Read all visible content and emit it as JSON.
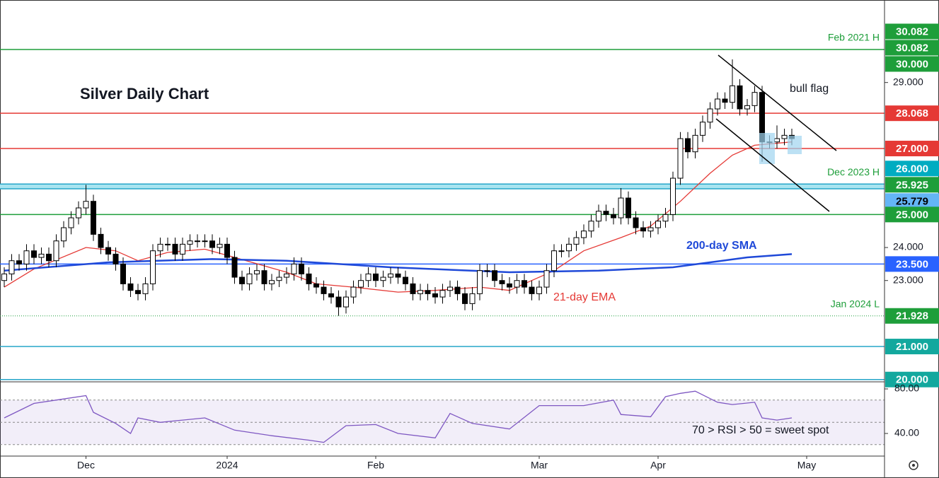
{
  "chart_data": {
    "type": "candlestick",
    "title": "Silver Daily Chart",
    "ylim": [
      19.93,
      31.5
    ],
    "yticks": [
      {
        "value": 29,
        "label": "29.000"
      },
      {
        "value": 24,
        "label": "24.000"
      },
      {
        "value": 23,
        "label": "23.000"
      }
    ],
    "up_color": "#ffffff",
    "down_color": "#000000",
    "open": [
      23.0,
      23.2,
      23.6,
      23.5,
      23.9,
      23.7,
      23.8,
      23.6,
      24.2,
      24.6,
      24.9,
      25.2,
      25.4,
      24.4,
      24.0,
      23.8,
      23.5,
      22.9,
      22.7,
      22.6,
      22.9,
      23.9,
      24.1,
      24.1,
      23.8,
      24.1,
      24.2,
      24.2,
      24.2,
      24.0,
      24.1,
      23.7,
      23.1,
      22.9,
      23.2,
      23.3,
      22.9,
      23.0,
      23.1,
      23.2,
      23.5,
      23.2,
      22.9,
      22.8,
      22.6,
      22.5,
      22.2,
      22.5,
      22.8,
      23.0,
      23.2,
      23.0,
      23.1,
      23.2,
      23.1,
      22.9,
      22.6,
      22.7,
      22.6,
      22.5,
      22.7,
      22.8,
      22.6,
      22.3,
      22.6,
      23.3,
      23.3,
      23.0,
      22.9,
      22.8,
      23.0,
      22.8,
      22.6,
      22.8,
      23.3,
      23.9,
      23.9,
      24.1,
      24.3,
      24.5,
      24.8,
      25.1,
      25.0,
      24.9,
      25.5,
      24.9,
      24.6,
      24.5,
      24.6,
      24.8,
      25.0,
      26.1,
      27.3,
      26.9,
      27.4,
      27.8,
      28.2,
      28.5,
      28.4,
      28.9,
      28.2,
      28.3,
      28.7,
      27.2,
      27.2,
      27.3,
      27.4
    ],
    "high": [
      23.4,
      23.8,
      23.8,
      24.1,
      24.1,
      24.0,
      24.0,
      24.4,
      24.8,
      25.1,
      25.4,
      25.9,
      25.6,
      24.6,
      24.2,
      24.0,
      23.7,
      23.1,
      22.9,
      23.1,
      24.1,
      24.3,
      24.3,
      24.3,
      24.3,
      24.4,
      24.4,
      24.4,
      24.4,
      24.3,
      24.3,
      23.9,
      23.3,
      23.4,
      23.5,
      23.5,
      23.2,
      23.3,
      23.4,
      23.7,
      23.7,
      23.4,
      23.1,
      23.0,
      22.8,
      22.7,
      22.7,
      23.0,
      23.2,
      23.4,
      23.4,
      23.3,
      23.4,
      23.4,
      23.3,
      23.1,
      22.9,
      22.9,
      22.8,
      22.9,
      23.0,
      23.0,
      22.8,
      22.8,
      23.5,
      23.5,
      23.5,
      23.2,
      23.1,
      23.2,
      23.2,
      23.0,
      23.0,
      23.5,
      24.1,
      24.1,
      24.3,
      24.5,
      24.7,
      25.0,
      25.3,
      25.3,
      25.2,
      25.8,
      25.7,
      25.1,
      24.8,
      24.8,
      25.0,
      25.2,
      26.3,
      27.5,
      27.5,
      27.6,
      28.0,
      28.4,
      28.7,
      28.7,
      29.7,
      29.1,
      28.5,
      28.9,
      28.9,
      27.4,
      27.7,
      27.6,
      27.6
    ],
    "low": [
      22.8,
      23.0,
      23.3,
      23.3,
      23.5,
      23.5,
      23.4,
      23.4,
      24.0,
      24.4,
      24.7,
      25.0,
      24.2,
      23.8,
      23.6,
      23.3,
      22.7,
      22.5,
      22.4,
      22.4,
      22.7,
      23.7,
      23.9,
      23.6,
      23.6,
      23.9,
      24.0,
      24.0,
      23.8,
      23.8,
      23.5,
      22.9,
      22.7,
      22.7,
      23.0,
      22.7,
      22.7,
      22.8,
      22.9,
      23.0,
      23.0,
      22.7,
      22.6,
      22.4,
      22.3,
      21.93,
      22.0,
      22.3,
      22.6,
      22.8,
      22.8,
      22.8,
      22.9,
      22.9,
      22.7,
      22.4,
      22.4,
      22.4,
      22.3,
      22.3,
      22.5,
      22.4,
      22.1,
      22.1,
      22.4,
      23.1,
      22.8,
      22.7,
      22.6,
      22.6,
      22.6,
      22.4,
      22.4,
      22.6,
      23.1,
      23.7,
      23.7,
      23.9,
      24.1,
      24.3,
      24.6,
      24.8,
      24.7,
      24.7,
      24.7,
      24.4,
      24.3,
      24.3,
      24.4,
      24.6,
      24.8,
      25.9,
      26.7,
      26.7,
      27.2,
      27.6,
      28.0,
      28.2,
      28.2,
      28.0,
      28.0,
      28.1,
      26.6,
      27.0,
      27.0,
      27.1,
      27.1
    ],
    "close": [
      23.2,
      23.6,
      23.5,
      23.9,
      23.7,
      23.8,
      23.6,
      24.2,
      24.6,
      24.9,
      25.2,
      25.4,
      24.4,
      24.0,
      23.8,
      23.5,
      22.9,
      22.7,
      22.6,
      22.9,
      23.9,
      24.1,
      24.1,
      23.8,
      24.1,
      24.2,
      24.2,
      24.2,
      24.0,
      24.1,
      23.7,
      23.1,
      22.9,
      23.2,
      23.3,
      22.9,
      23.0,
      23.1,
      23.2,
      23.5,
      23.2,
      22.9,
      22.8,
      22.6,
      22.5,
      22.2,
      22.5,
      22.8,
      23.0,
      23.2,
      23.0,
      23.1,
      23.2,
      23.1,
      22.9,
      22.6,
      22.7,
      22.6,
      22.5,
      22.7,
      22.8,
      22.6,
      22.3,
      22.6,
      23.3,
      23.3,
      23.0,
      22.9,
      22.8,
      23.0,
      22.8,
      22.6,
      22.8,
      23.3,
      23.9,
      23.9,
      24.1,
      24.3,
      24.5,
      24.8,
      25.1,
      25.0,
      24.9,
      25.5,
      24.9,
      24.6,
      24.5,
      24.6,
      24.8,
      25.0,
      26.1,
      27.3,
      26.9,
      27.4,
      27.8,
      28.2,
      28.5,
      28.4,
      28.9,
      28.2,
      28.3,
      28.7,
      27.2,
      27.2,
      27.3,
      27.4,
      27.3
    ],
    "x_labels": [
      {
        "index": 11,
        "label": "Dec"
      },
      {
        "index": 30,
        "label": "2024"
      },
      {
        "index": 50,
        "label": "Feb"
      },
      {
        "index": 72,
        "label": "Mar"
      },
      {
        "index": 88,
        "label": "Apr"
      },
      {
        "index": 108,
        "label": "May"
      }
    ],
    "overlays": [
      {
        "name": "21-day EMA",
        "color": "#e53935",
        "x": [
          0,
          4,
          11,
          15,
          18,
          22,
          27,
          31,
          38,
          42,
          47,
          53,
          58,
          64,
          68,
          74,
          78,
          83,
          87,
          91,
          95,
          98,
          101,
          106
        ],
        "values": [
          22.8,
          23.35,
          24.0,
          23.9,
          23.6,
          23.85,
          23.95,
          23.7,
          23.25,
          22.9,
          22.8,
          22.65,
          22.7,
          22.8,
          22.7,
          23.3,
          23.9,
          24.3,
          24.65,
          25.4,
          26.25,
          26.8,
          27.1,
          27.2
        ]
      },
      {
        "name": "200-day SMA",
        "color": "#1f49d8",
        "x": [
          0,
          14,
          28,
          38,
          52,
          68,
          80,
          90,
          95,
          100,
          106
        ],
        "values": [
          23.3,
          23.55,
          23.65,
          23.6,
          23.4,
          23.25,
          23.3,
          23.4,
          23.55,
          23.7,
          23.8
        ]
      }
    ],
    "levels": [
      {
        "value": 30.082,
        "label": "30.082",
        "color": "#1e9e3a",
        "line": "none"
      },
      {
        "value": 30.082,
        "label": "30.082",
        "color": "#1e9e3a",
        "line": "none"
      },
      {
        "value": 30,
        "label": "30.000",
        "color": "#1e9e3a",
        "line": "solid",
        "line_color": "#1e9e3a",
        "note": "Feb 2021 H"
      },
      {
        "value": 28.068,
        "label": "28.068",
        "color": "#e53935",
        "line": "solid",
        "line_color": "#e53935"
      },
      {
        "value": 27,
        "label": "27.000",
        "color": "#e53935",
        "line": "solid",
        "line_color": "#e53935"
      },
      {
        "value": 26,
        "label": "26.000",
        "color": "#00acc1",
        "line": "none"
      },
      {
        "value": 25.925,
        "label": "25.925",
        "color": "#1e9e3a",
        "line": "solid",
        "line_color": "#26a6c9",
        "zone": true,
        "note": "Dec 2023 H"
      },
      {
        "value": 25.779,
        "label": "25.779",
        "color": "#64b5f6",
        "text_color": "#000000",
        "line": "solid",
        "line_color": "#26a6c9",
        "zone": true
      },
      {
        "value": 25,
        "label": "25.000",
        "color": "#1e9e3a",
        "line": "solid",
        "line_color": "#1e9e3a"
      },
      {
        "value": 23.5,
        "label": "23.500",
        "color": "#2962ff",
        "line": "solid",
        "line_color": "#2962ff"
      },
      {
        "value": 21.928,
        "label": "21.928",
        "color": "#1e9e3a",
        "line": "dotted",
        "line_color": "#1e9e3a",
        "note": "Jan 2024 L"
      },
      {
        "value": 21,
        "label": "21.000",
        "color": "#13a89e",
        "line": "solid",
        "line_color": "#26a6c9"
      },
      {
        "value": 20,
        "label": "20.000",
        "color": "#13a89e",
        "line": "solid",
        "line_color": "#26a6c9"
      }
    ],
    "zone_color": "#a8e4f0",
    "annotations": [
      "bull flag",
      "70 > RSI > 50 = sweet spot"
    ],
    "rsi": {
      "color": "#7e57c2",
      "ylim": [
        19.7,
        86.35
      ],
      "yticks": [
        {
          "value": 80,
          "label": "80.00"
        },
        {
          "value": 40,
          "label": "40.00"
        }
      ],
      "bands": [
        30,
        70
      ],
      "midline": 50,
      "x": [
        0,
        4,
        8,
        11,
        12,
        15,
        17,
        18,
        21,
        24,
        27,
        31,
        36,
        41,
        43,
        46,
        50,
        53,
        58,
        60,
        63,
        68,
        72,
        76,
        78,
        82,
        83,
        87,
        89,
        91,
        93,
        96,
        98,
        101,
        102,
        104,
        106
      ],
      "values": [
        54,
        67,
        71,
        74,
        59,
        49,
        40,
        54,
        50,
        52,
        54,
        43,
        38,
        34,
        32,
        47,
        48,
        40,
        36,
        58,
        49,
        44,
        65,
        65,
        65,
        70,
        57,
        55,
        73,
        76,
        78,
        68,
        66,
        68,
        54,
        52,
        54
      ]
    }
  }
}
